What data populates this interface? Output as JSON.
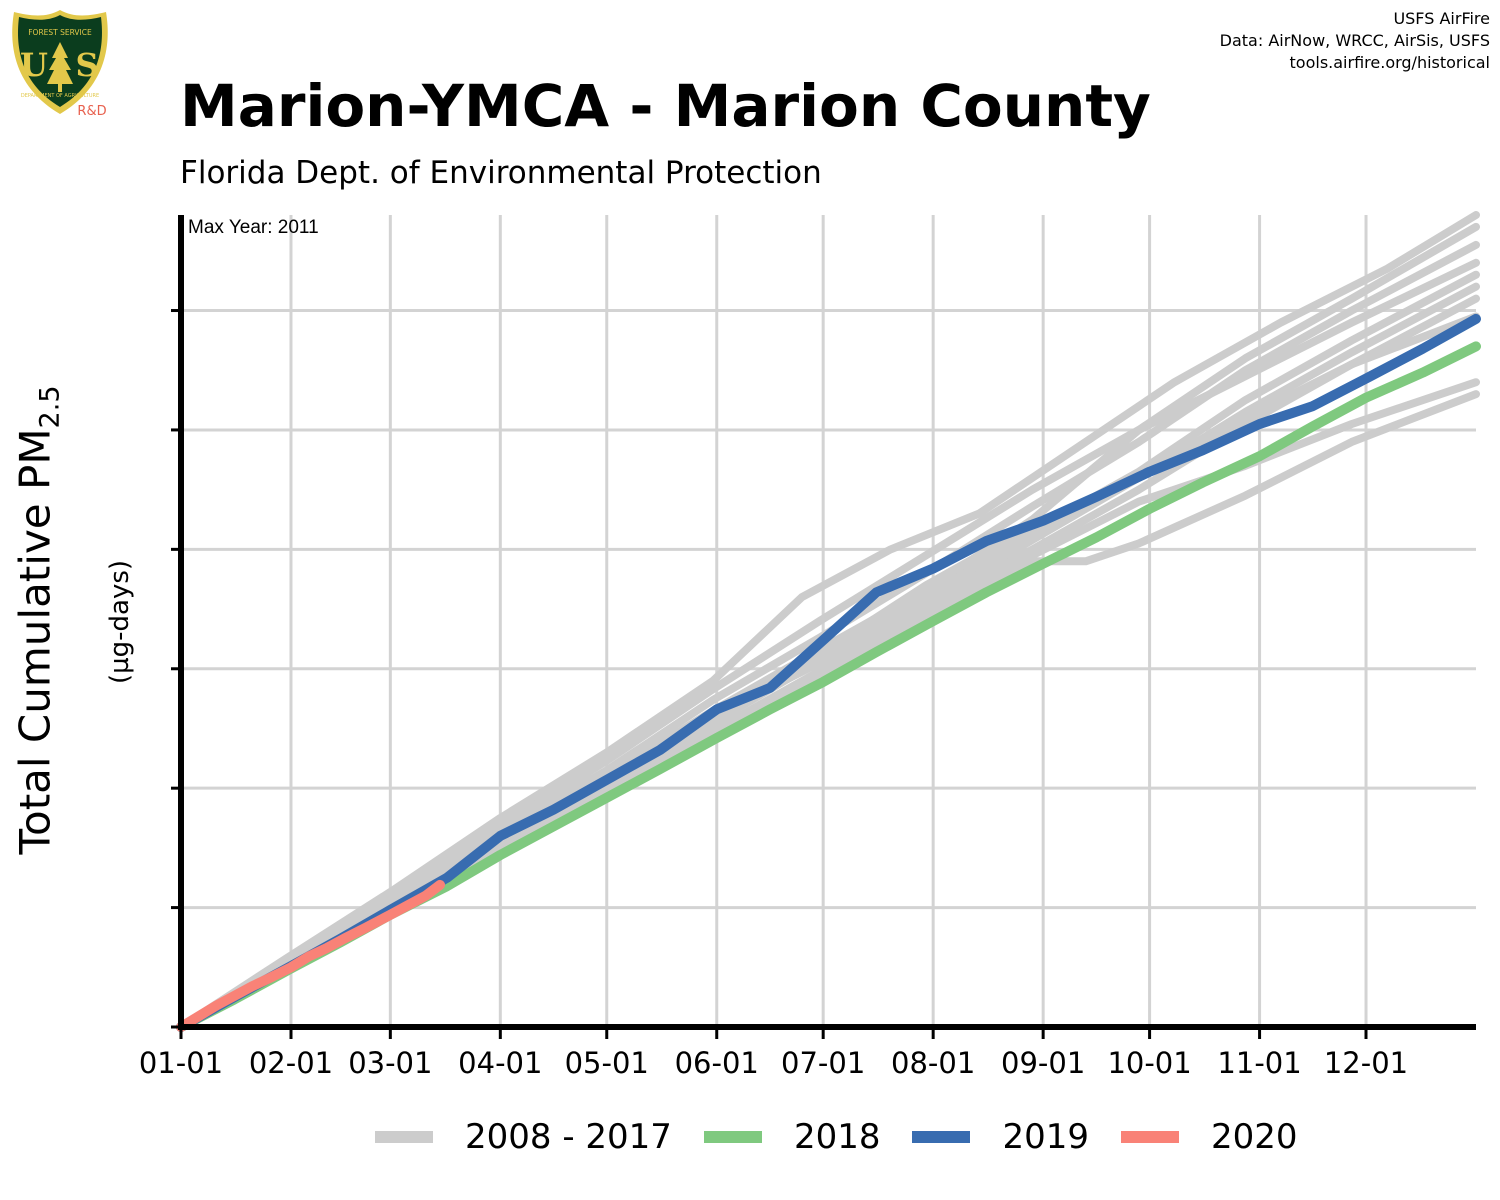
{
  "header": {
    "title": "Marion-YMCA - Marion County",
    "subtitle": "Florida Dept. of Environmental Protection",
    "credits": [
      "USFS AirFire",
      "Data: AirNow, WRCC, AirSis, USFS",
      "tools.airfire.org/historical"
    ]
  },
  "logo": {
    "top_text": "FOREST SERVICE",
    "letters_left": "U",
    "letters_right": "S",
    "bottom_text": "DEPARTMENT OF AGRICULTURE",
    "badge": "R&D",
    "colors": {
      "shield": "#0b3d1e",
      "rim": "#e2c84a",
      "badge": "#e8614f"
    }
  },
  "axis": {
    "ylabel_main": "Total Cumulative PM",
    "ylabel_sub": "2.5",
    "ylabel_unit": "(µg-days)"
  },
  "annotation": {
    "max_year": "Max Year: 2011"
  },
  "chart_data": {
    "type": "line",
    "xlabel": "",
    "x_ticks": [
      "01-01",
      "02-01",
      "03-01",
      "04-01",
      "05-01",
      "06-01",
      "07-01",
      "08-01",
      "09-01",
      "10-01",
      "11-01",
      "12-01"
    ],
    "x_tick_days": [
      0,
      31,
      59,
      90,
      120,
      151,
      181,
      212,
      243,
      273,
      304,
      334
    ],
    "xlim": [
      0,
      365
    ],
    "ylim": [
      0,
      68
    ],
    "y_gridlines": [
      10,
      20,
      30,
      40,
      50,
      60
    ],
    "y_tick_labels_shown": false,
    "grid": true,
    "legend_position": "bottom",
    "colors": {
      "historic": "#cccccc",
      "2018": "#7fc97f",
      "2019": "#386cb0",
      "2020": "#f98277"
    },
    "legend": [
      {
        "label": "2008 - 2017",
        "color": "#cccccc"
      },
      {
        "label": "2018",
        "color": "#7fc97f"
      },
      {
        "label": "2019",
        "color": "#386cb0"
      },
      {
        "label": "2020",
        "color": "#f98277"
      }
    ],
    "historic_series": [
      {
        "x": [
          0,
          30,
          60,
          90,
          120,
          150,
          175,
          200,
          225,
          250,
          280,
          310,
          340,
          365
        ],
        "y": [
          0,
          5.8,
          11.5,
          17.5,
          23.0,
          29.0,
          36.0,
          40.0,
          43.0,
          48.0,
          54.0,
          59.0,
          63.5,
          68.0
        ]
      },
      {
        "x": [
          0,
          30,
          60,
          90,
          120,
          150,
          180,
          210,
          240,
          270,
          300,
          330,
          365
        ],
        "y": [
          0,
          5.5,
          11.0,
          16.8,
          22.3,
          28.3,
          34.0,
          39.5,
          45.0,
          50.0,
          56.0,
          61.0,
          67.0
        ]
      },
      {
        "x": [
          0,
          30,
          60,
          90,
          120,
          150,
          180,
          210,
          240,
          270,
          300,
          330,
          365
        ],
        "y": [
          0,
          5.3,
          10.6,
          16.3,
          21.5,
          27.4,
          32.6,
          38.0,
          43.6,
          49.0,
          55.0,
          60.0,
          65.5
        ]
      },
      {
        "x": [
          0,
          30,
          60,
          90,
          120,
          150,
          180,
          210,
          240,
          250,
          270,
          300,
          330,
          365
        ],
        "y": [
          0,
          5.2,
          10.4,
          15.8,
          21.0,
          26.5,
          31.6,
          36.6,
          42.5,
          45.0,
          50.0,
          54.5,
          59.0,
          64.0
        ]
      },
      {
        "x": [
          0,
          30,
          60,
          90,
          120,
          150,
          180,
          210,
          240,
          270,
          300,
          330,
          365
        ],
        "y": [
          0,
          5.0,
          10.0,
          15.5,
          20.5,
          26.0,
          30.5,
          35.5,
          40.8,
          46.0,
          51.5,
          56.5,
          62.0
        ]
      },
      {
        "x": [
          0,
          30,
          60,
          90,
          120,
          150,
          180,
          210,
          240,
          270,
          300,
          330,
          365
        ],
        "y": [
          0,
          5.1,
          10.2,
          15.5,
          20.7,
          26.0,
          31.0,
          36.0,
          41.5,
          46.5,
          52.5,
          57.5,
          63.0
        ]
      },
      {
        "x": [
          0,
          30,
          60,
          90,
          120,
          150,
          180,
          210,
          240,
          270,
          300,
          330,
          365
        ],
        "y": [
          0,
          4.9,
          9.9,
          15.2,
          20.2,
          25.5,
          30.7,
          35.2,
          40.0,
          45.0,
          50.5,
          55.5,
          61.0
        ]
      },
      {
        "x": [
          0,
          30,
          60,
          90,
          120,
          150,
          180,
          210,
          240,
          255,
          270,
          300,
          330,
          365
        ],
        "y": [
          0,
          5.0,
          10.1,
          15.1,
          20.0,
          24.8,
          29.8,
          34.8,
          39.0,
          39.0,
          40.5,
          44.5,
          49.0,
          53.0
        ]
      },
      {
        "x": [
          0,
          30,
          60,
          90,
          120,
          150,
          180,
          210,
          240,
          270,
          300,
          330,
          365
        ],
        "y": [
          0,
          4.8,
          9.6,
          14.8,
          19.8,
          24.8,
          29.5,
          34.2,
          39.5,
          44.0,
          47.0,
          50.5,
          54.0
        ]
      },
      {
        "x": [
          0,
          30,
          60,
          90,
          120,
          150,
          180,
          210,
          240,
          270,
          300,
          330,
          365
        ],
        "y": [
          0,
          5.0,
          10.0,
          15.3,
          20.4,
          25.8,
          31.2,
          37.0,
          42.0,
          46.0,
          51.0,
          55.5,
          59.5
        ]
      }
    ],
    "series": [
      {
        "name": "2018",
        "x": [
          0,
          15,
          31,
          45,
          59,
          75,
          90,
          105,
          120,
          135,
          151,
          166,
          181,
          196,
          212,
          227,
          243,
          258,
          273,
          288,
          304,
          319,
          334,
          350,
          365
        ],
        "y": [
          0,
          2.3,
          4.9,
          7.1,
          9.4,
          11.8,
          14.4,
          16.8,
          19.2,
          21.6,
          24.2,
          26.6,
          28.9,
          31.4,
          34.0,
          36.4,
          38.8,
          41.0,
          43.4,
          45.6,
          47.8,
          50.3,
          52.7,
          54.8,
          57.0
        ]
      },
      {
        "name": "2019",
        "x": [
          0,
          15,
          31,
          45,
          59,
          75,
          90,
          105,
          120,
          135,
          151,
          166,
          181,
          196,
          212,
          227,
          243,
          258,
          273,
          288,
          304,
          319,
          334,
          350,
          365
        ],
        "y": [
          0,
          2.5,
          5.1,
          7.4,
          9.8,
          12.5,
          16.0,
          18.2,
          20.7,
          23.2,
          26.6,
          28.4,
          32.4,
          36.4,
          38.4,
          40.7,
          42.4,
          44.4,
          46.5,
          48.3,
          50.5,
          52.0,
          54.3,
          56.8,
          59.3
        ]
      },
      {
        "name": "2020",
        "x": [
          0,
          5,
          10,
          15,
          20,
          25,
          31,
          36,
          41,
          46,
          52,
          59,
          64,
          69,
          73
        ],
        "y": [
          0,
          0.9,
          1.8,
          2.6,
          3.4,
          4.1,
          5.0,
          5.9,
          6.6,
          7.4,
          8.3,
          9.4,
          10.2,
          11.0,
          11.9
        ]
      }
    ]
  }
}
